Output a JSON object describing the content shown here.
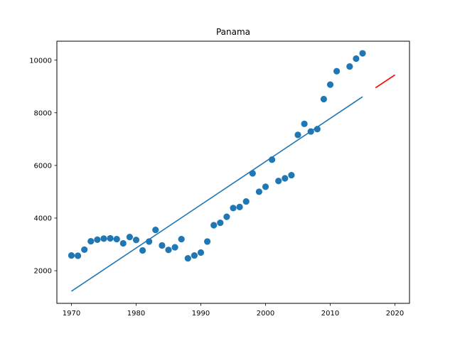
{
  "chart_data": {
    "type": "scatter",
    "title": "Panama",
    "xlabel": "",
    "ylabel": "",
    "xlim": [
      1967.75,
      2022.25
    ],
    "ylim": [
      760,
      10720
    ],
    "xticks": [
      1970,
      1980,
      1990,
      2000,
      2010,
      2020
    ],
    "yticks": [
      2000,
      4000,
      6000,
      8000,
      10000
    ],
    "grid": false,
    "series": [
      {
        "kind": "scatter",
        "color": "#1f77b4",
        "points": [
          [
            1970,
            2580
          ],
          [
            1971,
            2570
          ],
          [
            1972,
            2800
          ],
          [
            1973,
            3120
          ],
          [
            1974,
            3180
          ],
          [
            1975,
            3220
          ],
          [
            1976,
            3230
          ],
          [
            1977,
            3200
          ],
          [
            1978,
            3040
          ],
          [
            1979,
            3280
          ],
          [
            1980,
            3170
          ],
          [
            1981,
            2770
          ],
          [
            1982,
            3110
          ],
          [
            1983,
            3550
          ],
          [
            1984,
            2960
          ],
          [
            1985,
            2790
          ],
          [
            1986,
            2890
          ],
          [
            1987,
            3200
          ],
          [
            1988,
            2470
          ],
          [
            1989,
            2580
          ],
          [
            1990,
            2690
          ],
          [
            1991,
            3110
          ],
          [
            1992,
            3730
          ],
          [
            1993,
            3820
          ],
          [
            1994,
            4050
          ],
          [
            1995,
            4380
          ],
          [
            1996,
            4420
          ],
          [
            1997,
            4630
          ],
          [
            1998,
            5700
          ],
          [
            1999,
            5000
          ],
          [
            2000,
            5190
          ],
          [
            2001,
            6220
          ],
          [
            2002,
            5410
          ],
          [
            2003,
            5510
          ],
          [
            2004,
            5630
          ],
          [
            2005,
            7160
          ],
          [
            2006,
            7580
          ],
          [
            2007,
            7290
          ],
          [
            2008,
            7380
          ],
          [
            2009,
            8520
          ],
          [
            2010,
            9070
          ],
          [
            2011,
            9580
          ],
          [
            2013,
            9760
          ],
          [
            2014,
            10060
          ],
          [
            2015,
            10260
          ]
        ]
      },
      {
        "kind": "line",
        "color": "#1f77b4",
        "points": [
          [
            1970,
            1220
          ],
          [
            2015,
            8610
          ]
        ]
      },
      {
        "kind": "line",
        "color": "#ff0000",
        "points": [
          [
            2017,
            8950
          ],
          [
            2020,
            9440
          ]
        ]
      }
    ]
  }
}
